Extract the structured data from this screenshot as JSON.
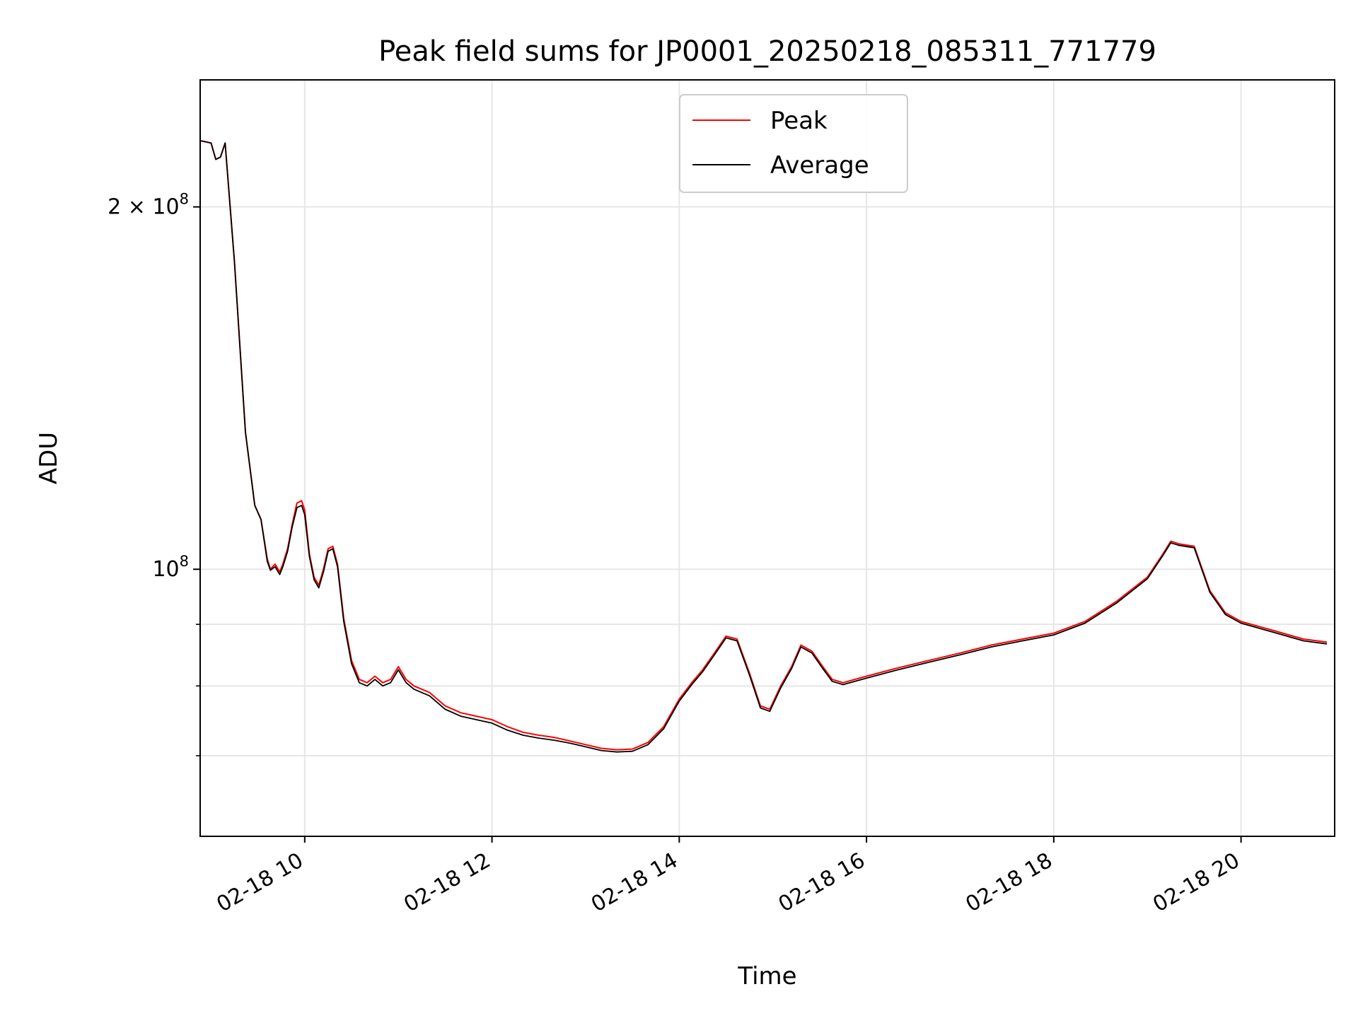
{
  "chart_data": {
    "type": "line",
    "title": "Peak field sums for JP0001_20250218_085311_771779",
    "xlabel": "Time",
    "ylabel": "ADU",
    "yscale": "log",
    "grid": true,
    "legend_placement": "upper-center",
    "xlim": [
      "02-18 08:53",
      "02-18 21:00"
    ],
    "ylim": [
      60000000,
      255000000
    ],
    "x_ticks": [
      "02-18 10:00",
      "02-18 12:00",
      "02-18 14:00",
      "02-18 16:00",
      "02-18 18:00",
      "02-18 20:00"
    ],
    "x_tick_labels": [
      "02-18 10",
      "02-18 12",
      "02-18 14",
      "02-18 16",
      "02-18 18",
      "02-18 20"
    ],
    "y_major_ticks": [
      {
        "value": 100000000,
        "base": "10",
        "exp": "8"
      },
      {
        "value": 200000000,
        "base": "2 × 10",
        "exp": "8"
      }
    ],
    "y_minor_ticks": [
      70000000,
      80000000,
      90000000,
      300000000
    ],
    "series": [
      {
        "name": "Peak",
        "color": "#ff0000",
        "points": [
          [
            "02-18 08:53",
            227000000
          ],
          [
            "02-18 09:00",
            226000000
          ],
          [
            "02-18 09:03",
            219000000
          ],
          [
            "02-18 09:06",
            220000000
          ],
          [
            "02-18 09:09",
            226000000
          ],
          [
            "02-18 09:15",
            180000000
          ],
          [
            "02-18 09:22",
            130000000
          ],
          [
            "02-18 09:28",
            113000000
          ],
          [
            "02-18 09:32",
            110000000
          ],
          [
            "02-18 09:36",
            102000000
          ],
          [
            "02-18 09:38",
            100000000
          ],
          [
            "02-18 09:41",
            101000000
          ],
          [
            "02-18 09:44",
            99500000
          ],
          [
            "02-18 09:46",
            101000000
          ],
          [
            "02-18 09:49",
            104000000
          ],
          [
            "02-18 09:52",
            109000000
          ],
          [
            "02-18 09:55",
            113500000
          ],
          [
            "02-18 09:58",
            114000000
          ],
          [
            "02-18 10:00",
            112000000
          ],
          [
            "02-18 10:03",
            103000000
          ],
          [
            "02-18 10:06",
            98500000
          ],
          [
            "02-18 10:09",
            97000000
          ],
          [
            "02-18 10:12",
            100000000
          ],
          [
            "02-18 10:15",
            104000000
          ],
          [
            "02-18 10:18",
            104500000
          ],
          [
            "02-18 10:21",
            101000000
          ],
          [
            "02-18 10:25",
            91000000
          ],
          [
            "02-18 10:30",
            84000000
          ],
          [
            "02-18 10:35",
            81000000
          ],
          [
            "02-18 10:40",
            80500000
          ],
          [
            "02-18 10:45",
            81500000
          ],
          [
            "02-18 10:50",
            80500000
          ],
          [
            "02-18 10:55",
            81000000
          ],
          [
            "02-18 11:00",
            83000000
          ],
          [
            "02-18 11:05",
            81000000
          ],
          [
            "02-18 11:10",
            80000000
          ],
          [
            "02-18 11:20",
            79000000
          ],
          [
            "02-18 11:30",
            77000000
          ],
          [
            "02-18 11:40",
            76000000
          ],
          [
            "02-18 11:50",
            75500000
          ],
          [
            "02-18 12:00",
            75000000
          ],
          [
            "02-18 12:10",
            74000000
          ],
          [
            "02-18 12:20",
            73200000
          ],
          [
            "02-18 12:30",
            72800000
          ],
          [
            "02-18 12:40",
            72500000
          ],
          [
            "02-18 12:50",
            72000000
          ],
          [
            "02-18 13:00",
            71500000
          ],
          [
            "02-18 13:10",
            71000000
          ],
          [
            "02-18 13:20",
            70800000
          ],
          [
            "02-18 13:30",
            70900000
          ],
          [
            "02-18 13:40",
            71800000
          ],
          [
            "02-18 13:50",
            74000000
          ],
          [
            "02-18 14:00",
            78000000
          ],
          [
            "02-18 14:08",
            80500000
          ],
          [
            "02-18 14:15",
            82500000
          ],
          [
            "02-18 14:22",
            85000000
          ],
          [
            "02-18 14:30",
            88000000
          ],
          [
            "02-18 14:37",
            87500000
          ],
          [
            "02-18 14:45",
            82000000
          ],
          [
            "02-18 14:52",
            77000000
          ],
          [
            "02-18 14:58",
            76500000
          ],
          [
            "02-18 15:05",
            80000000
          ],
          [
            "02-18 15:12",
            83000000
          ],
          [
            "02-18 15:18",
            86500000
          ],
          [
            "02-18 15:25",
            85500000
          ],
          [
            "02-18 15:32",
            83000000
          ],
          [
            "02-18 15:38",
            81000000
          ],
          [
            "02-18 15:45",
            80500000
          ],
          [
            "02-18 16:00",
            81500000
          ],
          [
            "02-18 16:20",
            82800000
          ],
          [
            "02-18 16:40",
            84000000
          ],
          [
            "02-18 17:00",
            85200000
          ],
          [
            "02-18 17:20",
            86500000
          ],
          [
            "02-18 17:40",
            87500000
          ],
          [
            "02-18 18:00",
            88500000
          ],
          [
            "02-18 18:20",
            90500000
          ],
          [
            "02-18 18:40",
            94000000
          ],
          [
            "02-18 19:00",
            98500000
          ],
          [
            "02-18 19:10",
            103000000
          ],
          [
            "02-18 19:15",
            105500000
          ],
          [
            "02-18 19:20",
            105000000
          ],
          [
            "02-18 19:30",
            104500000
          ],
          [
            "02-18 19:40",
            96000000
          ],
          [
            "02-18 19:50",
            92000000
          ],
          [
            "02-18 20:00",
            90500000
          ],
          [
            "02-18 20:20",
            89000000
          ],
          [
            "02-18 20:40",
            87500000
          ],
          [
            "02-18 20:55",
            87000000
          ]
        ]
      },
      {
        "name": "Average",
        "color": "#000000",
        "points": [
          [
            "02-18 08:53",
            227000000
          ],
          [
            "02-18 09:00",
            226000000
          ],
          [
            "02-18 09:03",
            219000000
          ],
          [
            "02-18 09:06",
            220000000
          ],
          [
            "02-18 09:09",
            226000000
          ],
          [
            "02-18 09:15",
            180000000
          ],
          [
            "02-18 09:22",
            130000000
          ],
          [
            "02-18 09:28",
            113000000
          ],
          [
            "02-18 09:32",
            110000000
          ],
          [
            "02-18 09:36",
            101500000
          ],
          [
            "02-18 09:38",
            99800000
          ],
          [
            "02-18 09:41",
            100500000
          ],
          [
            "02-18 09:44",
            99000000
          ],
          [
            "02-18 09:46",
            100500000
          ],
          [
            "02-18 09:49",
            103500000
          ],
          [
            "02-18 09:52",
            108500000
          ],
          [
            "02-18 09:55",
            112500000
          ],
          [
            "02-18 09:58",
            113000000
          ],
          [
            "02-18 10:00",
            111000000
          ],
          [
            "02-18 10:03",
            102500000
          ],
          [
            "02-18 10:06",
            98000000
          ],
          [
            "02-18 10:09",
            96500000
          ],
          [
            "02-18 10:12",
            99500000
          ],
          [
            "02-18 10:15",
            103500000
          ],
          [
            "02-18 10:18",
            104000000
          ],
          [
            "02-18 10:21",
            100500000
          ],
          [
            "02-18 10:25",
            90500000
          ],
          [
            "02-18 10:30",
            83500000
          ],
          [
            "02-18 10:35",
            80500000
          ],
          [
            "02-18 10:40",
            80000000
          ],
          [
            "02-18 10:45",
            81000000
          ],
          [
            "02-18 10:50",
            80000000
          ],
          [
            "02-18 10:55",
            80500000
          ],
          [
            "02-18 11:00",
            82500000
          ],
          [
            "02-18 11:05",
            80500000
          ],
          [
            "02-18 11:10",
            79500000
          ],
          [
            "02-18 11:20",
            78500000
          ],
          [
            "02-18 11:30",
            76500000
          ],
          [
            "02-18 11:40",
            75500000
          ],
          [
            "02-18 11:50",
            75000000
          ],
          [
            "02-18 12:00",
            74500000
          ],
          [
            "02-18 12:10",
            73500000
          ],
          [
            "02-18 12:20",
            72800000
          ],
          [
            "02-18 12:30",
            72400000
          ],
          [
            "02-18 12:40",
            72100000
          ],
          [
            "02-18 12:50",
            71700000
          ],
          [
            "02-18 13:00",
            71200000
          ],
          [
            "02-18 13:10",
            70700000
          ],
          [
            "02-18 13:20",
            70500000
          ],
          [
            "02-18 13:30",
            70600000
          ],
          [
            "02-18 13:40",
            71500000
          ],
          [
            "02-18 13:50",
            73700000
          ],
          [
            "02-18 14:00",
            77700000
          ],
          [
            "02-18 14:08",
            80200000
          ],
          [
            "02-18 14:15",
            82200000
          ],
          [
            "02-18 14:22",
            84700000
          ],
          [
            "02-18 14:30",
            87700000
          ],
          [
            "02-18 14:37",
            87200000
          ],
          [
            "02-18 14:45",
            81700000
          ],
          [
            "02-18 14:52",
            76700000
          ],
          [
            "02-18 14:58",
            76200000
          ],
          [
            "02-18 15:05",
            79700000
          ],
          [
            "02-18 15:12",
            82700000
          ],
          [
            "02-18 15:18",
            86200000
          ],
          [
            "02-18 15:25",
            85200000
          ],
          [
            "02-18 15:32",
            82700000
          ],
          [
            "02-18 15:38",
            80700000
          ],
          [
            "02-18 15:45",
            80200000
          ],
          [
            "02-18 16:00",
            81200000
          ],
          [
            "02-18 16:20",
            82500000
          ],
          [
            "02-18 16:40",
            83700000
          ],
          [
            "02-18 17:00",
            84900000
          ],
          [
            "02-18 17:20",
            86200000
          ],
          [
            "02-18 17:40",
            87200000
          ],
          [
            "02-18 18:00",
            88200000
          ],
          [
            "02-18 18:20",
            90200000
          ],
          [
            "02-18 18:40",
            93700000
          ],
          [
            "02-18 19:00",
            98200000
          ],
          [
            "02-18 19:10",
            102700000
          ],
          [
            "02-18 19:15",
            105200000
          ],
          [
            "02-18 19:20",
            104700000
          ],
          [
            "02-18 19:30",
            104200000
          ],
          [
            "02-18 19:40",
            95700000
          ],
          [
            "02-18 19:50",
            91700000
          ],
          [
            "02-18 20:00",
            90200000
          ],
          [
            "02-18 20:20",
            88700000
          ],
          [
            "02-18 20:40",
            87200000
          ],
          [
            "02-18 20:55",
            86700000
          ]
        ]
      }
    ]
  }
}
